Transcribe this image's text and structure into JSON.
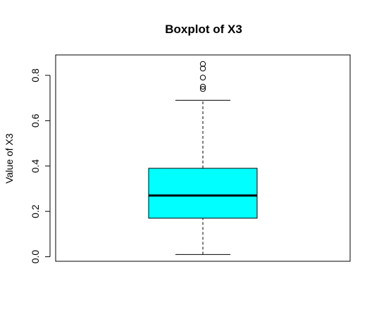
{
  "chart_data": {
    "type": "boxplot",
    "title": "Boxplot of X3",
    "xlabel": "",
    "ylabel": "Value of X3",
    "ylim": [
      -0.02,
      0.89
    ],
    "yticks": [
      0.0,
      0.2,
      0.4,
      0.6,
      0.8
    ],
    "ytick_labels": [
      "0.0",
      "0.2",
      "0.4",
      "0.6",
      "0.8"
    ],
    "grid": false,
    "box": {
      "whisker_low": 0.01,
      "q1": 0.17,
      "median": 0.27,
      "q3": 0.39,
      "whisker_high": 0.69,
      "outliers": [
        0.74,
        0.75,
        0.79,
        0.83,
        0.85
      ]
    },
    "colors": {
      "box_fill": "#00FFFF",
      "stroke": "#000000"
    }
  }
}
